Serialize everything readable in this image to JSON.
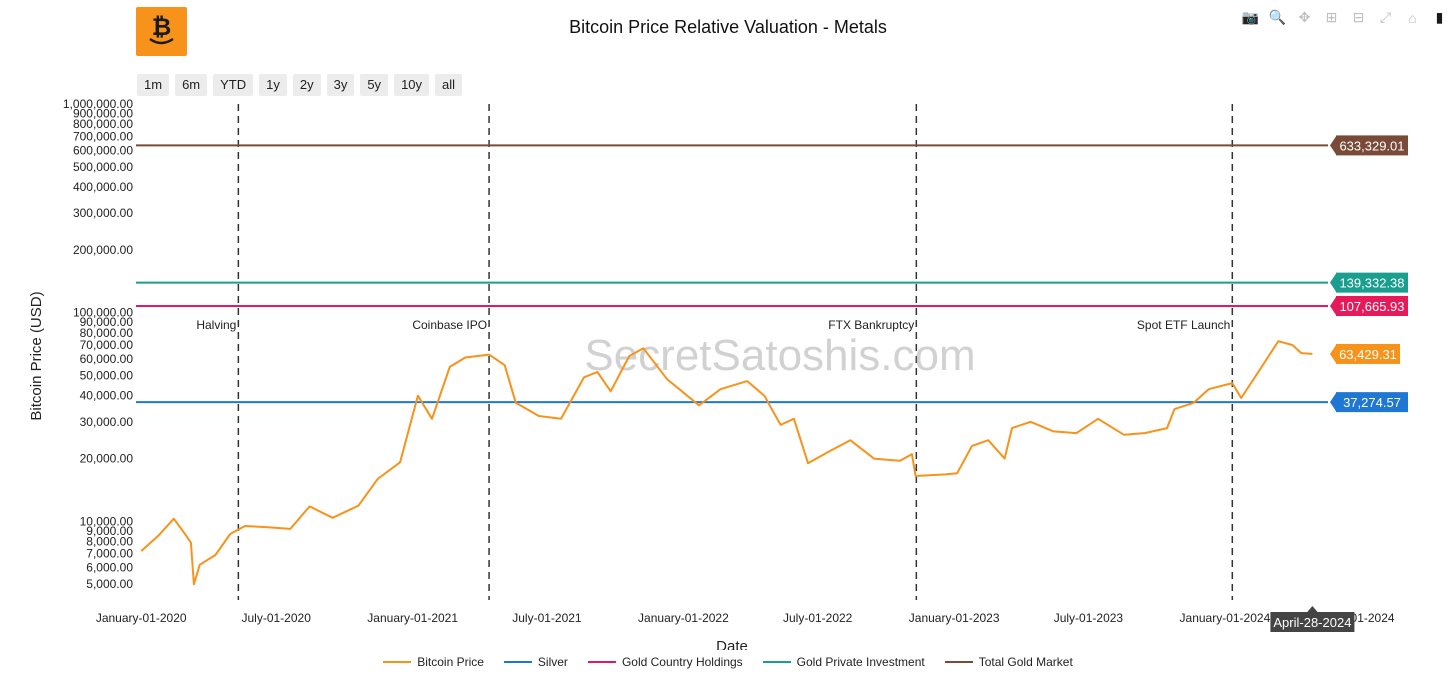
{
  "title": "Bitcoin Price Relative Valuation - Metals",
  "logo": {
    "glyph": "₿",
    "color": "#f7931a"
  },
  "toolbar": [
    {
      "name": "camera-icon",
      "glyph": "📷"
    },
    {
      "name": "zoom-icon",
      "glyph": "🔍"
    },
    {
      "name": "pan-icon",
      "glyph": "✥"
    },
    {
      "name": "zoom-in-icon",
      "glyph": "⊞"
    },
    {
      "name": "zoom-out-icon",
      "glyph": "⊟"
    },
    {
      "name": "autoscale-icon",
      "glyph": "⤢"
    },
    {
      "name": "reset-axes-icon",
      "glyph": "⌂"
    },
    {
      "name": "plotly-logo-icon",
      "glyph": "▮"
    }
  ],
  "range_buttons": [
    "1m",
    "6m",
    "YTD",
    "1y",
    "2y",
    "3y",
    "5y",
    "10y",
    "all"
  ],
  "watermark": "SecretSatoshis.com",
  "hover_date": "April-28-2024",
  "chart_data": {
    "type": "line",
    "title": "Bitcoin Price Relative Valuation - Metals",
    "xlabel": "Date",
    "ylabel": "Bitcoin Price (USD)",
    "y_scale": "log",
    "xlim": [
      "2019-12-25",
      "2024-05-19"
    ],
    "ylim": [
      4200,
      1000000
    ],
    "x_ticks": [
      "January-01-2020",
      "July-01-2020",
      "January-01-2021",
      "July-01-2021",
      "January-01-2022",
      "July-01-2022",
      "January-01-2023",
      "July-01-2023",
      "January-01-2024",
      "July-01-2024"
    ],
    "x_tick_dates": [
      "2020-01-01",
      "2020-07-01",
      "2021-01-01",
      "2021-07-01",
      "2022-01-01",
      "2022-07-01",
      "2023-01-01",
      "2023-07-01",
      "2024-01-01",
      "2024-07-01"
    ],
    "y_ticks": [
      5000,
      6000,
      7000,
      8000,
      9000,
      10000,
      20000,
      30000,
      40000,
      50000,
      60000,
      70000,
      80000,
      90000,
      100000,
      200000,
      300000,
      400000,
      500000,
      600000,
      700000,
      800000,
      900000,
      1000000
    ],
    "y_tick_labels": [
      "5,000.00",
      "6,000.00",
      "7,000.00",
      "8,000.00",
      "9,000.00",
      "10,000.00",
      "20,000.00",
      "30,000.00",
      "40,000.00",
      "50,000.00",
      "60,000.00",
      "70,000.00",
      "80,000.00",
      "90,000.00",
      "100,000.00",
      "200,000.00",
      "300,000.00",
      "400,000.00",
      "500,000.00",
      "600,000.00",
      "700,000.00",
      "800,000.00",
      "900,000.00",
      "1,000,000.00"
    ],
    "series": [
      {
        "name": "Bitcoin Price",
        "color": "#f7931a",
        "x": [
          "2020-01-01",
          "2020-01-25",
          "2020-02-14",
          "2020-03-01",
          "2020-03-08",
          "2020-03-12",
          "2020-03-20",
          "2020-04-10",
          "2020-04-30",
          "2020-05-20",
          "2020-06-15",
          "2020-07-20",
          "2020-08-15",
          "2020-09-15",
          "2020-10-20",
          "2020-11-15",
          "2020-12-15",
          "2021-01-08",
          "2021-01-27",
          "2021-02-20",
          "2021-03-13",
          "2021-04-14",
          "2021-05-05",
          "2021-05-20",
          "2021-06-20",
          "2021-07-20",
          "2021-08-20",
          "2021-09-07",
          "2021-09-25",
          "2021-10-20",
          "2021-11-08",
          "2021-12-10",
          "2022-01-22",
          "2022-02-20",
          "2022-03-28",
          "2022-04-20",
          "2022-05-12",
          "2022-05-30",
          "2022-06-18",
          "2022-07-15",
          "2022-08-14",
          "2022-09-15",
          "2022-10-20",
          "2022-11-05",
          "2022-11-10",
          "2022-12-20",
          "2023-01-05",
          "2023-01-25",
          "2023-02-16",
          "2023-03-10",
          "2023-03-20",
          "2023-04-14",
          "2023-05-15",
          "2023-06-15",
          "2023-07-14",
          "2023-08-18",
          "2023-09-15",
          "2023-10-15",
          "2023-10-25",
          "2023-11-20",
          "2023-12-10",
          "2024-01-11",
          "2024-01-23",
          "2024-02-15",
          "2024-03-13",
          "2024-04-01",
          "2024-04-13",
          "2024-04-28"
        ],
        "values": [
          7200,
          8600,
          10300,
          8600,
          7900,
          5000,
          6200,
          6900,
          8700,
          9500,
          9400,
          9200,
          11800,
          10400,
          11900,
          16000,
          19200,
          40000,
          31000,
          55000,
          61000,
          63000,
          56000,
          37000,
          32000,
          31000,
          49000,
          52000,
          42000,
          62000,
          67500,
          48000,
          36000,
          43000,
          47000,
          40000,
          29000,
          31000,
          19000,
          21500,
          24500,
          20000,
          19500,
          21000,
          16500,
          16800,
          17000,
          23000,
          24500,
          20000,
          28000,
          30000,
          27000,
          26500,
          31000,
          26000,
          26500,
          28000,
          34500,
          37000,
          43000,
          46000,
          39000,
          52000,
          73000,
          70000,
          64000,
          63429.31
        ]
      },
      {
        "name": "Silver",
        "color": "#1f77d4",
        "values": [
          37274.57
        ],
        "label": "37,274.57"
      },
      {
        "name": "Gold Country Holdings",
        "color": "#e6195a",
        "values": [
          107665.93
        ],
        "label": "107,665.93"
      },
      {
        "name": "Gold Private Investment",
        "color": "#1a9e8f",
        "values": [
          139332.38
        ],
        "label": "139,332.38"
      },
      {
        "name": "Total Gold Market",
        "color": "#7a4a38",
        "values": [
          633329.01
        ],
        "label": "633,329.01"
      }
    ],
    "annotations": [
      {
        "text": "Halving",
        "date": "2020-05-11"
      },
      {
        "text": "Coinbase IPO",
        "date": "2021-04-14"
      },
      {
        "text": "FTX Bankruptcy",
        "date": "2022-11-11"
      },
      {
        "text": "Spot ETF Launch",
        "date": "2024-01-11"
      }
    ],
    "last_price_label": "63,429.31",
    "legend": [
      "Bitcoin Price",
      "Silver",
      "Gold Country Holdings",
      "Gold Private Investment",
      "Total Gold Market"
    ],
    "legend_position": "bottom-center",
    "grid": false
  }
}
